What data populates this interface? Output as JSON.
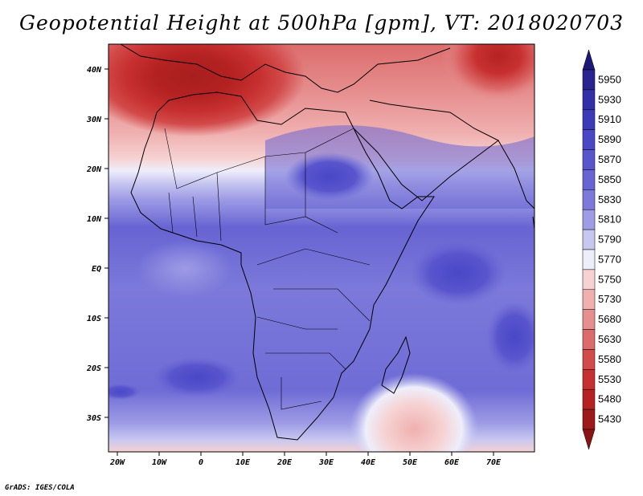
{
  "title": "Geopotential Height at 500hPa [gpm], VT: 2018020703",
  "footer": "GrADS: IGES/COLA",
  "lat_labels": [
    "40N",
    "30N",
    "20N",
    "10N",
    "EQ",
    "10S",
    "20S",
    "30S"
  ],
  "lon_labels": [
    "20W",
    "10W",
    "0",
    "10E",
    "20E",
    "30E",
    "40E",
    "50E",
    "60E",
    "70E"
  ],
  "colorbar": {
    "levels": [
      "5950",
      "5930",
      "5910",
      "5890",
      "5870",
      "5850",
      "5830",
      "5810",
      "5790",
      "5770",
      "5750",
      "5730",
      "5680",
      "5630",
      "5580",
      "5530",
      "5480",
      "5430"
    ],
    "colors": [
      "#29248f",
      "#332fa6",
      "#3d3ab8",
      "#4a47c6",
      "#5855cd",
      "#6764d3",
      "#7c79da",
      "#9e9ce5",
      "#c8c7f0",
      "#eeeefb",
      "#f6d2d2",
      "#f0b0b0",
      "#e68f8f",
      "#dc6c6c",
      "#d24a4a",
      "#c73030",
      "#b42222",
      "#9c1a1a"
    ],
    "top_arrow_color": "#1e1878",
    "bottom_arrow_color": "#8a1414"
  },
  "map_colors": {
    "ocean_base": "#7d7bdb",
    "deep_high": "#4b49c7",
    "low_center": "#a81e1e",
    "coast": "#000000"
  }
}
